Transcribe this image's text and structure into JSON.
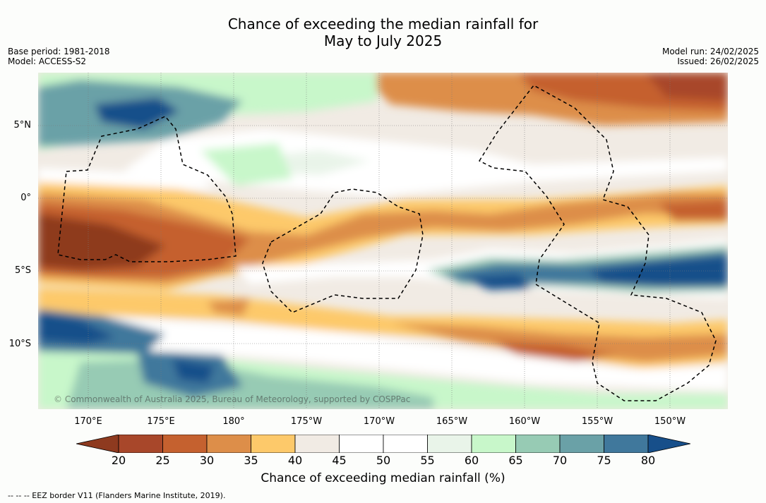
{
  "title": {
    "line1": "Chance of exceeding the median rainfall for",
    "line2": "May to July 2025"
  },
  "meta": {
    "base_period": "Base period: 1981-2018",
    "model": "Model: ACCESS-S2",
    "model_run": "Model run: 24/02/2025",
    "issued": "Issued: 26/02/2025"
  },
  "axes": {
    "lat_labels": [
      "5°N",
      "0°",
      "5°S",
      "10°S"
    ],
    "lon_labels": [
      "170°E",
      "175°E",
      "180°",
      "175°W",
      "170°W",
      "165°W",
      "160°W",
      "155°W",
      "150°W"
    ]
  },
  "colorbar": {
    "title": "Chance of exceeding median rainfall (%)",
    "ticks": [
      "20",
      "25",
      "30",
      "35",
      "40",
      "45",
      "50",
      "55",
      "60",
      "65",
      "70",
      "75",
      "80"
    ],
    "colors": [
      "#8e3a1f",
      "#a8472a",
      "#c5612f",
      "#dd8e49",
      "#fdc96a",
      "#f1ebe4",
      "#ffffff",
      "#ffffff",
      "#e9f4e9",
      "#c8f7ca",
      "#97cbb4",
      "#6aa1a7",
      "#40789c",
      "#174f8a"
    ]
  },
  "credit": "© Commonwealth of Australia 2025, Bureau of Meteorology, supported by COSPPac",
  "footer": "-- -- -- EEZ border V11 (Flanders Marine Institute, 2019)."
}
